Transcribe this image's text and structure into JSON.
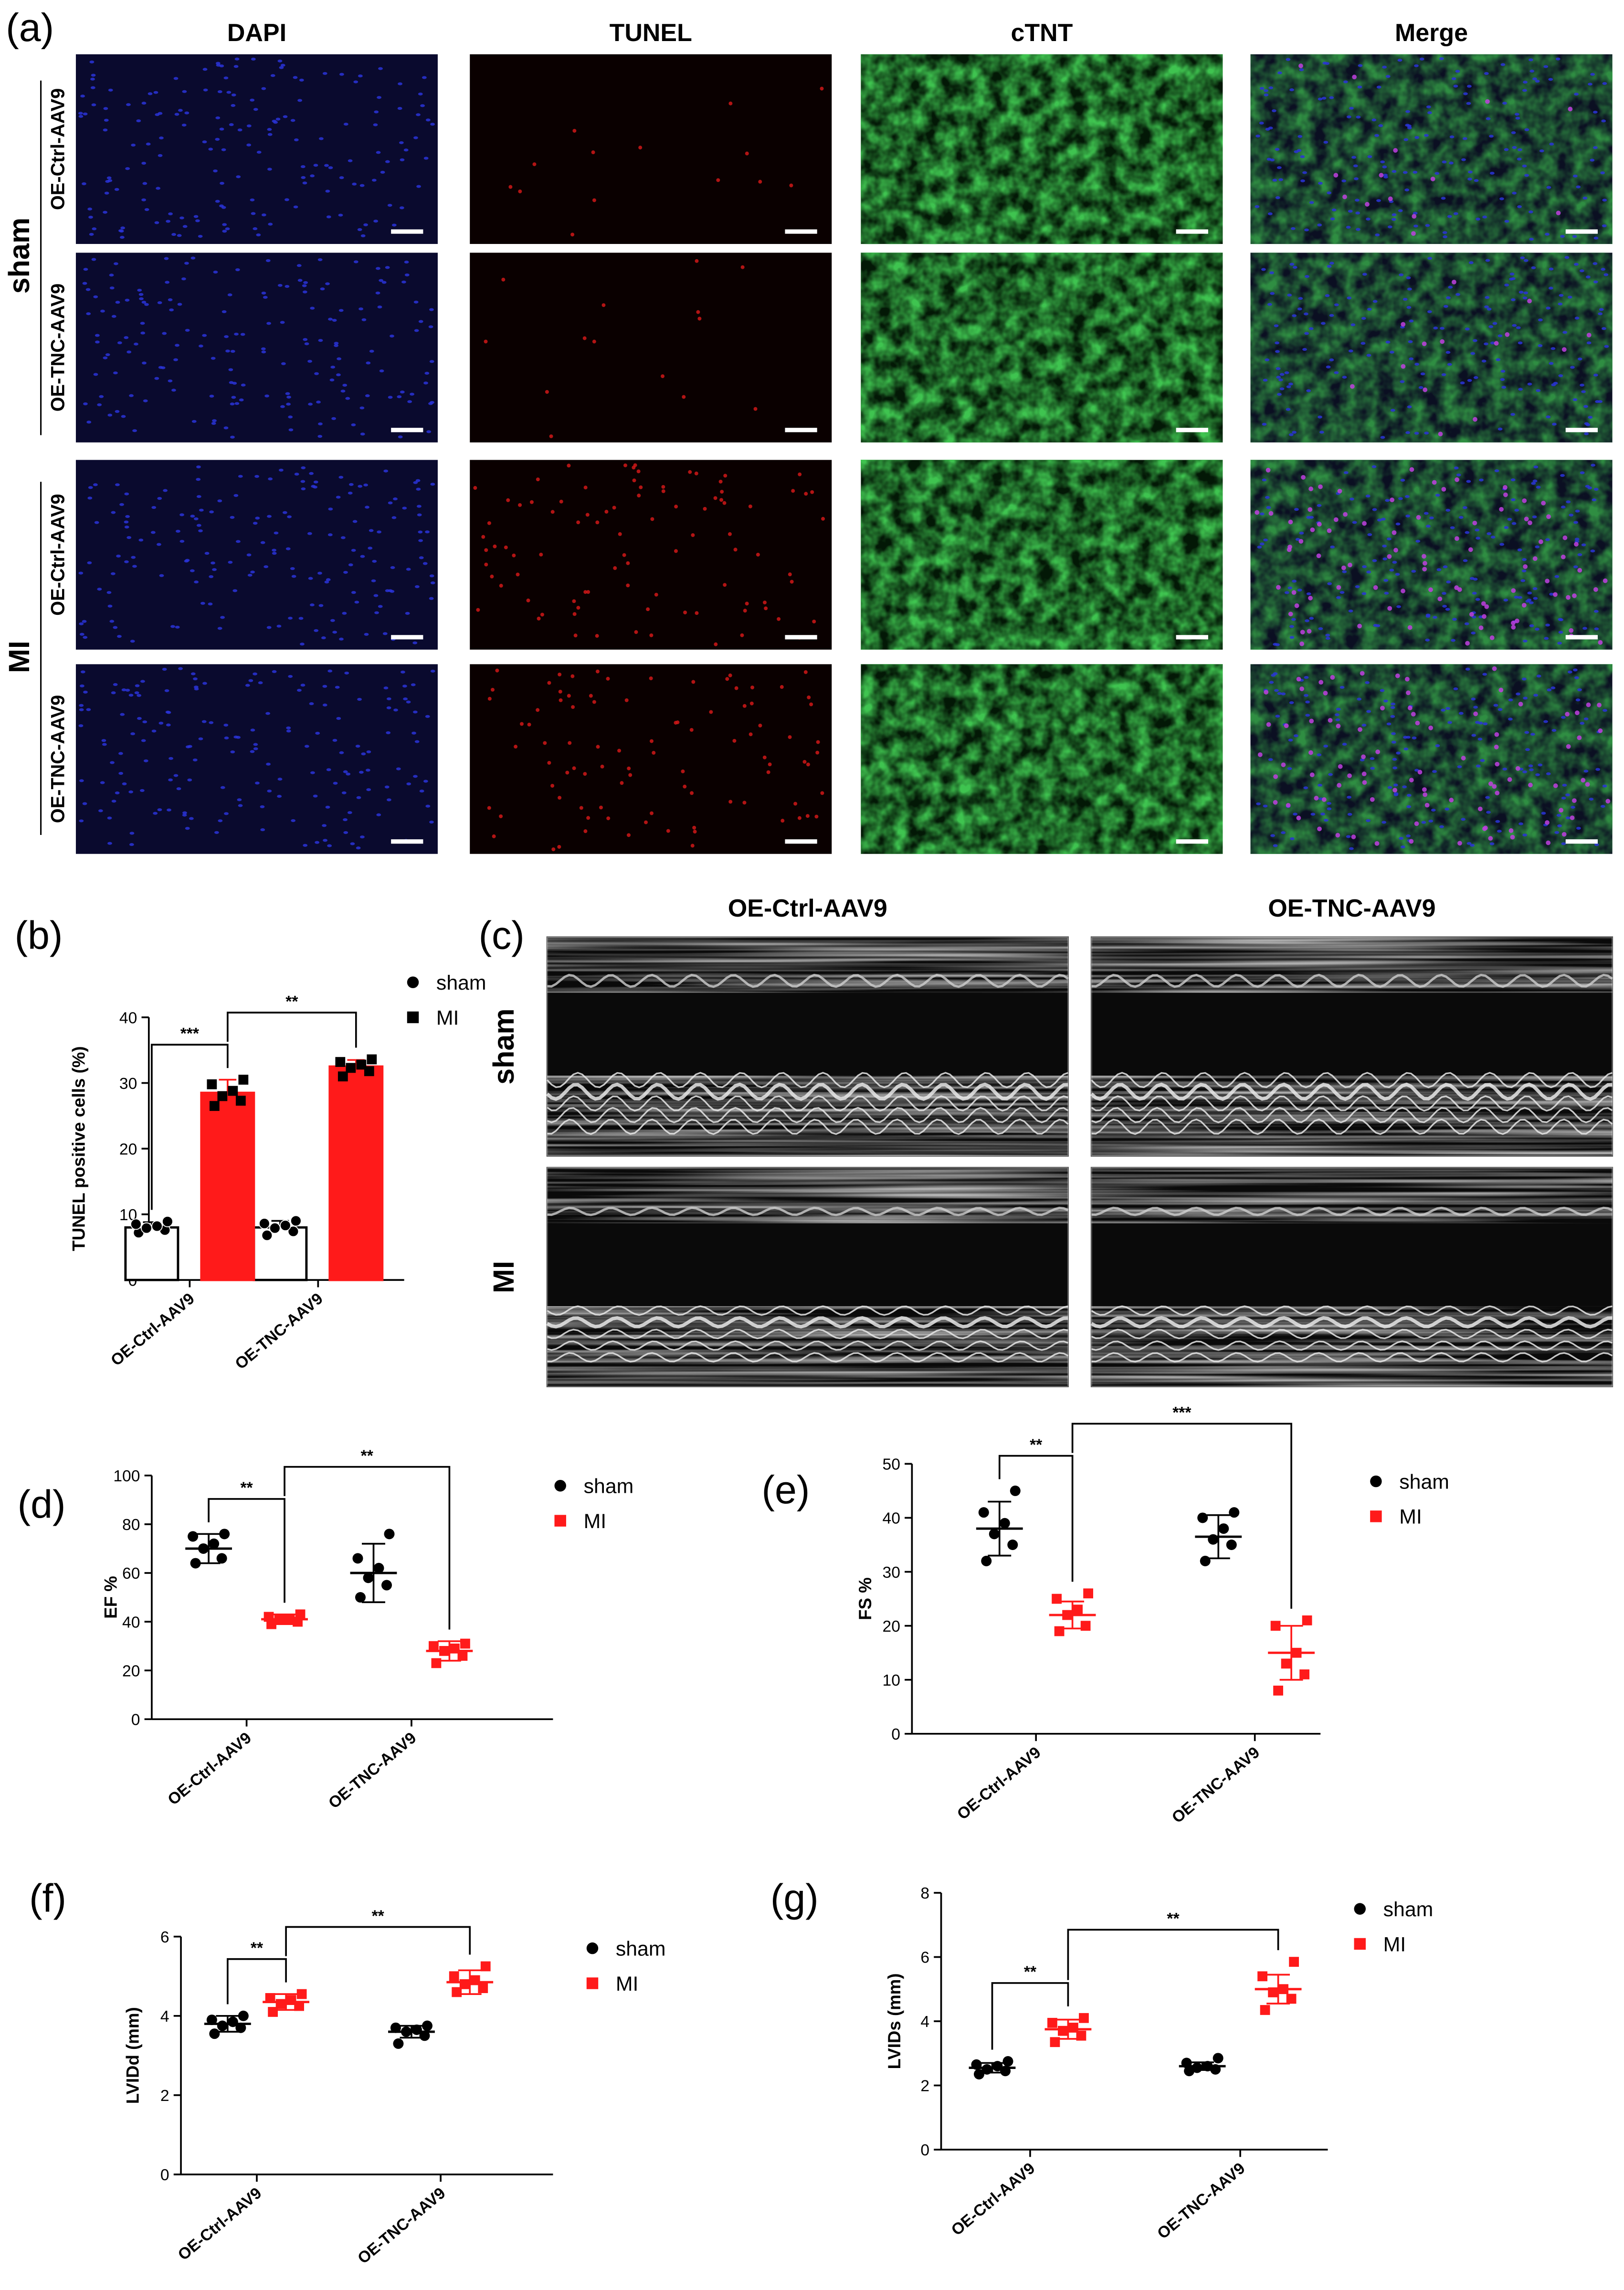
{
  "figure": {
    "panels": {
      "a": "(a)",
      "b": "(b)",
      "c": "(c)",
      "d": "(d)",
      "e": "(e)",
      "f": "(f)",
      "g": "(g)"
    },
    "colors": {
      "sham": "#000000",
      "MI": "#ff1a1a"
    }
  },
  "micrographs": {
    "columns": [
      "DAPI",
      "TUNEL",
      "cTNT",
      "Merge"
    ],
    "groups": [
      "sham",
      "MI"
    ],
    "rows": [
      "OE-Ctrl-AAV9",
      "OE-TNC-AAV9",
      "OE-Ctrl-AAV9",
      "OE-TNC-AAV9"
    ]
  },
  "echo": {
    "columns": [
      "OE-Ctrl-AAV9",
      "OE-TNC-AAV9"
    ],
    "rows": [
      "sham",
      "MI"
    ]
  },
  "chart_data": [
    {
      "panel": "b",
      "type": "bar",
      "categories": [
        "OE-Ctrl-AAV9",
        "OE-TNC-AAV9"
      ],
      "ylabel": "TUNEL positive cells (%)",
      "ylim": [
        0,
        40
      ],
      "yticks": [
        0,
        10,
        20,
        30,
        40
      ],
      "legend": [
        "sham",
        "MI"
      ],
      "series": [
        {
          "name": "sham",
          "values": [
            8.0,
            8.0
          ],
          "sd": [
            0.8,
            1.0
          ],
          "points": [
            [
              7.2,
              7.6,
              7.9,
              8.2,
              8.5,
              8.9
            ],
            [
              6.8,
              7.4,
              7.9,
              8.3,
              8.6,
              9.0
            ]
          ]
        },
        {
          "name": "MI",
          "values": [
            28.5,
            32.5
          ],
          "sd": [
            2.0,
            1.0
          ],
          "points": [
            [
              26.5,
              27.3,
              28.0,
              28.8,
              29.8,
              30.5
            ],
            [
              31.0,
              31.8,
              32.3,
              32.8,
              33.2,
              33.6
            ]
          ]
        }
      ],
      "annotations": [
        {
          "text": "***",
          "from": "OE-Ctrl-AAV9 sham",
          "to": "OE-Ctrl-AAV9 MI"
        },
        {
          "text": "**",
          "from": "OE-Ctrl-AAV9 MI",
          "to": "OE-TNC-AAV9 MI"
        }
      ]
    },
    {
      "panel": "d",
      "type": "scatter",
      "categories": [
        "OE-Ctrl-AAV9",
        "OE-TNC-AAV9"
      ],
      "ylabel": "EF %",
      "ylim": [
        0,
        100
      ],
      "yticks": [
        0,
        20,
        40,
        60,
        80,
        100
      ],
      "legend": [
        "sham",
        "MI"
      ],
      "series": [
        {
          "name": "sham",
          "mean": [
            70,
            60
          ],
          "sd": [
            6,
            12
          ],
          "points": [
            [
              64,
              66,
              70,
              72,
              75,
              76
            ],
            [
              50,
              55,
              58,
              62,
              66,
              76
            ]
          ]
        },
        {
          "name": "MI",
          "mean": [
            41,
            28
          ],
          "sd": [
            2,
            4
          ],
          "points": [
            [
              39,
              40,
              41,
              41,
              42,
              43
            ],
            [
              23,
              26,
              28,
              29,
              30,
              31
            ]
          ]
        }
      ],
      "annotations": [
        {
          "text": "**",
          "from": "OE-Ctrl-AAV9 sham",
          "to": "OE-Ctrl-AAV9 MI"
        },
        {
          "text": "**",
          "from": "OE-Ctrl-AAV9 MI",
          "to": "OE-TNC-AAV9 MI"
        }
      ]
    },
    {
      "panel": "e",
      "type": "scatter",
      "categories": [
        "OE-Ctrl-AAV9",
        "OE-TNC-AAV9"
      ],
      "ylabel": "FS %",
      "ylim": [
        0,
        50
      ],
      "yticks": [
        0,
        10,
        20,
        30,
        40,
        50
      ],
      "legend": [
        "sham",
        "MI"
      ],
      "series": [
        {
          "name": "sham",
          "mean": [
            38,
            36.5
          ],
          "sd": [
            5,
            4
          ],
          "points": [
            [
              32,
              35,
              37,
              39,
              41,
              45
            ],
            [
              32,
              35,
              36,
              38,
              40,
              41
            ]
          ]
        },
        {
          "name": "MI",
          "mean": [
            22,
            15
          ],
          "sd": [
            2.5,
            5
          ],
          "points": [
            [
              19,
              20,
              22,
              23,
              25,
              26
            ],
            [
              8,
              11,
              13,
              15,
              20,
              21
            ]
          ]
        }
      ],
      "annotations": [
        {
          "text": "**",
          "from": "OE-Ctrl-AAV9 sham",
          "to": "OE-Ctrl-AAV9 MI"
        },
        {
          "text": "***",
          "from": "OE-Ctrl-AAV9 MI",
          "to": "OE-TNC-AAV9 MI"
        }
      ]
    },
    {
      "panel": "f",
      "type": "scatter",
      "categories": [
        "OE-Ctrl-AAV9",
        "OE-TNC-AAV9"
      ],
      "ylabel": "LVIDd (mm)",
      "ylim": [
        0,
        6
      ],
      "yticks": [
        0,
        2,
        4,
        6
      ],
      "legend": [
        "sham",
        "MI"
      ],
      "series": [
        {
          "name": "sham",
          "mean": [
            3.8,
            3.6
          ],
          "sd": [
            0.2,
            0.15
          ],
          "points": [
            [
              3.55,
              3.7,
              3.75,
              3.85,
              3.9,
              4.0
            ],
            [
              3.3,
              3.5,
              3.6,
              3.65,
              3.7,
              3.75
            ]
          ]
        },
        {
          "name": "MI",
          "mean": [
            4.35,
            4.85
          ],
          "sd": [
            0.2,
            0.3
          ],
          "points": [
            [
              4.1,
              4.25,
              4.3,
              4.4,
              4.45,
              4.55
            ],
            [
              4.6,
              4.7,
              4.8,
              4.9,
              5.0,
              5.25
            ]
          ]
        }
      ],
      "annotations": [
        {
          "text": "**",
          "from": "OE-Ctrl-AAV9 sham",
          "to": "OE-Ctrl-AAV9 MI"
        },
        {
          "text": "**",
          "from": "OE-Ctrl-AAV9 MI",
          "to": "OE-TNC-AAV9 MI"
        }
      ]
    },
    {
      "panel": "g",
      "type": "scatter",
      "categories": [
        "OE-Ctrl-AAV9",
        "OE-TNC-AAV9"
      ],
      "ylabel": "LVIDs (mm)",
      "ylim": [
        0,
        8
      ],
      "yticks": [
        0,
        2,
        4,
        6,
        8
      ],
      "legend": [
        "sham",
        "MI"
      ],
      "series": [
        {
          "name": "sham",
          "mean": [
            2.55,
            2.6
          ],
          "sd": [
            0.15,
            0.12
          ],
          "points": [
            [
              2.35,
              2.45,
              2.5,
              2.6,
              2.65,
              2.75
            ],
            [
              2.45,
              2.5,
              2.55,
              2.6,
              2.7,
              2.85
            ]
          ]
        },
        {
          "name": "MI",
          "mean": [
            3.75,
            5.0
          ],
          "sd": [
            0.3,
            0.45
          ],
          "points": [
            [
              3.35,
              3.55,
              3.7,
              3.8,
              3.95,
              4.1
            ],
            [
              4.35,
              4.7,
              4.9,
              5.0,
              5.4,
              5.85
            ]
          ]
        }
      ],
      "annotations": [
        {
          "text": "**",
          "from": "OE-Ctrl-AAV9 sham",
          "to": "OE-Ctrl-AAV9 MI"
        },
        {
          "text": "**",
          "from": "OE-Ctrl-AAV9 MI",
          "to": "OE-TNC-AAV9 MI"
        }
      ]
    }
  ]
}
